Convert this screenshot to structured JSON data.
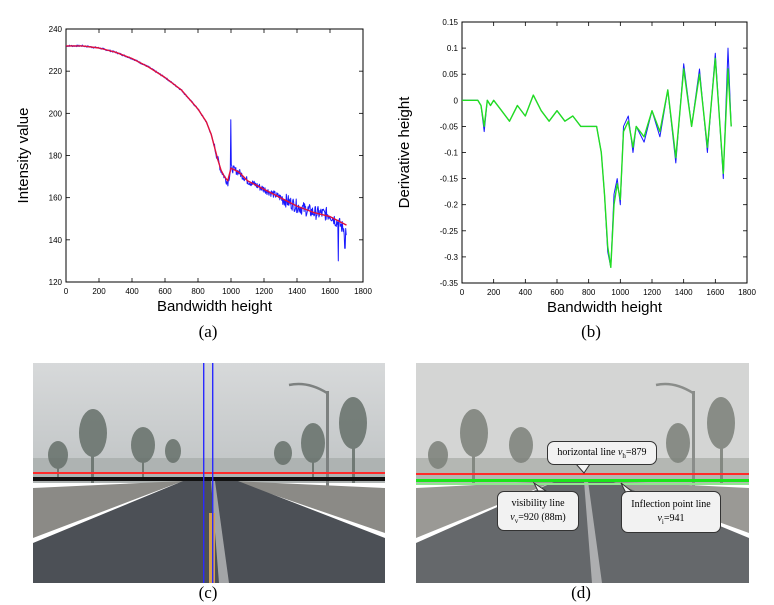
{
  "chart_data": [
    {
      "type": "line",
      "id": "a",
      "caption": "(a)",
      "xlabel": "Bandwidth height",
      "ylabel": "Intensity value",
      "xlim": [
        0,
        1800
      ],
      "ylim": [
        120,
        240
      ],
      "xticks": [
        0,
        200,
        400,
        600,
        800,
        1000,
        1200,
        1400,
        1600,
        1800
      ],
      "yticks": [
        120,
        140,
        160,
        180,
        200,
        220,
        240
      ],
      "grid": false,
      "series": [
        {
          "color": "#1a1aff",
          "style": "noisy",
          "x": [
            0,
            100,
            200,
            300,
            400,
            500,
            600,
            700,
            800,
            850,
            880,
            900,
            920,
            940,
            960,
            980,
            1000,
            1050,
            1100,
            1150,
            1200,
            1300,
            1400,
            1500,
            1600,
            1650,
            1700
          ],
          "y": [
            232,
            232,
            231,
            229,
            226,
            222,
            217,
            211,
            202,
            196,
            190,
            184,
            178,
            173,
            170,
            167,
            174,
            172,
            168,
            166,
            164,
            160,
            156,
            153,
            152,
            148,
            144
          ]
        },
        {
          "color": "#e0103c",
          "style": "smooth",
          "x": [
            0,
            100,
            200,
            300,
            400,
            500,
            600,
            700,
            800,
            850,
            880,
            900,
            920,
            940,
            960,
            980,
            1000,
            1050,
            1100,
            1150,
            1200,
            1300,
            1400,
            1500,
            1600,
            1650,
            1700
          ],
          "y": [
            232,
            232,
            231,
            229,
            226,
            222,
            217,
            211,
            202,
            196,
            190,
            184,
            178,
            173,
            170,
            168,
            174,
            172,
            168,
            166,
            164,
            160,
            156,
            153,
            151,
            149,
            147
          ]
        }
      ]
    },
    {
      "type": "line",
      "id": "b",
      "caption": "(b)",
      "xlabel": "Bandwidth height",
      "ylabel": "Derivative height",
      "xlim": [
        0,
        1800
      ],
      "ylim": [
        -0.35,
        0.15
      ],
      "xticks": [
        0,
        200,
        400,
        600,
        800,
        1000,
        1200,
        1400,
        1600,
        1800
      ],
      "yticks": [
        -0.35,
        -0.3,
        -0.25,
        -0.2,
        -0.15,
        -0.1,
        -0.05,
        0,
        0.05,
        0.1,
        0.15
      ],
      "ytick_labels": [
        "-0.35",
        "-0.3",
        "-0.25",
        "-0.2",
        "-0.15",
        "-0.1",
        "-0.05",
        "0",
        "0.05",
        "0.1",
        "0.15"
      ],
      "grid": false,
      "series": [
        {
          "color": "#1a1aff",
          "x": [
            0,
            100,
            120,
            140,
            160,
            180,
            200,
            250,
            300,
            350,
            400,
            450,
            500,
            550,
            600,
            650,
            700,
            750,
            800,
            850,
            880,
            900,
            920,
            940,
            960,
            980,
            1000,
            1020,
            1050,
            1080,
            1100,
            1150,
            1200,
            1250,
            1300,
            1350,
            1400,
            1450,
            1500,
            1550,
            1600,
            1650,
            1680,
            1700
          ],
          "y": [
            0,
            0,
            -0.01,
            -0.06,
            0,
            -0.01,
            0,
            -0.02,
            -0.04,
            -0.01,
            -0.03,
            0.01,
            -0.02,
            -0.04,
            -0.02,
            -0.04,
            -0.03,
            -0.05,
            -0.05,
            -0.05,
            -0.1,
            -0.18,
            -0.29,
            -0.32,
            -0.18,
            -0.15,
            -0.2,
            -0.05,
            -0.03,
            -0.1,
            -0.05,
            -0.08,
            -0.02,
            -0.07,
            0.02,
            -0.12,
            0.07,
            -0.05,
            0.06,
            -0.1,
            0.09,
            -0.15,
            0.1,
            -0.05
          ]
        },
        {
          "color": "#22dd22",
          "x": [
            0,
            100,
            120,
            140,
            160,
            180,
            200,
            250,
            300,
            350,
            400,
            450,
            500,
            550,
            600,
            650,
            700,
            750,
            800,
            850,
            880,
            900,
            920,
            940,
            960,
            980,
            1000,
            1020,
            1050,
            1080,
            1100,
            1150,
            1200,
            1250,
            1300,
            1350,
            1400,
            1450,
            1500,
            1550,
            1600,
            1650,
            1680,
            1700
          ],
          "y": [
            0,
            0,
            -0.01,
            -0.05,
            0,
            -0.01,
            0,
            -0.02,
            -0.04,
            -0.01,
            -0.03,
            0.01,
            -0.02,
            -0.04,
            -0.02,
            -0.04,
            -0.03,
            -0.05,
            -0.05,
            -0.05,
            -0.1,
            -0.18,
            -0.28,
            -0.32,
            -0.2,
            -0.16,
            -0.19,
            -0.06,
            -0.04,
            -0.09,
            -0.05,
            -0.07,
            -0.02,
            -0.06,
            0.02,
            -0.11,
            0.06,
            -0.05,
            0.05,
            -0.09,
            0.08,
            -0.14,
            0.06,
            -0.05
          ]
        }
      ]
    }
  ],
  "images": {
    "c": {
      "caption": "(c)"
    },
    "d": {
      "caption": "(d)",
      "callouts": {
        "horizontal": {
          "text": "horizontal line ",
          "var": "v",
          "sub": "h",
          "value": "=879"
        },
        "visibility": {
          "line1": "visibility line",
          "var": "v",
          "sub": "v",
          "value": "=920 (88m)"
        },
        "inflection": {
          "line1": "Inflection point line",
          "var": "v",
          "sub": "i",
          "value": "=941"
        }
      }
    }
  },
  "colors": {
    "red_line": "#ff2a2a",
    "green_line": "#19e619",
    "blue_line": "#2a2aff",
    "black_line": "#111111",
    "sky": "#cfd2d3",
    "road": "#4a4d52"
  }
}
